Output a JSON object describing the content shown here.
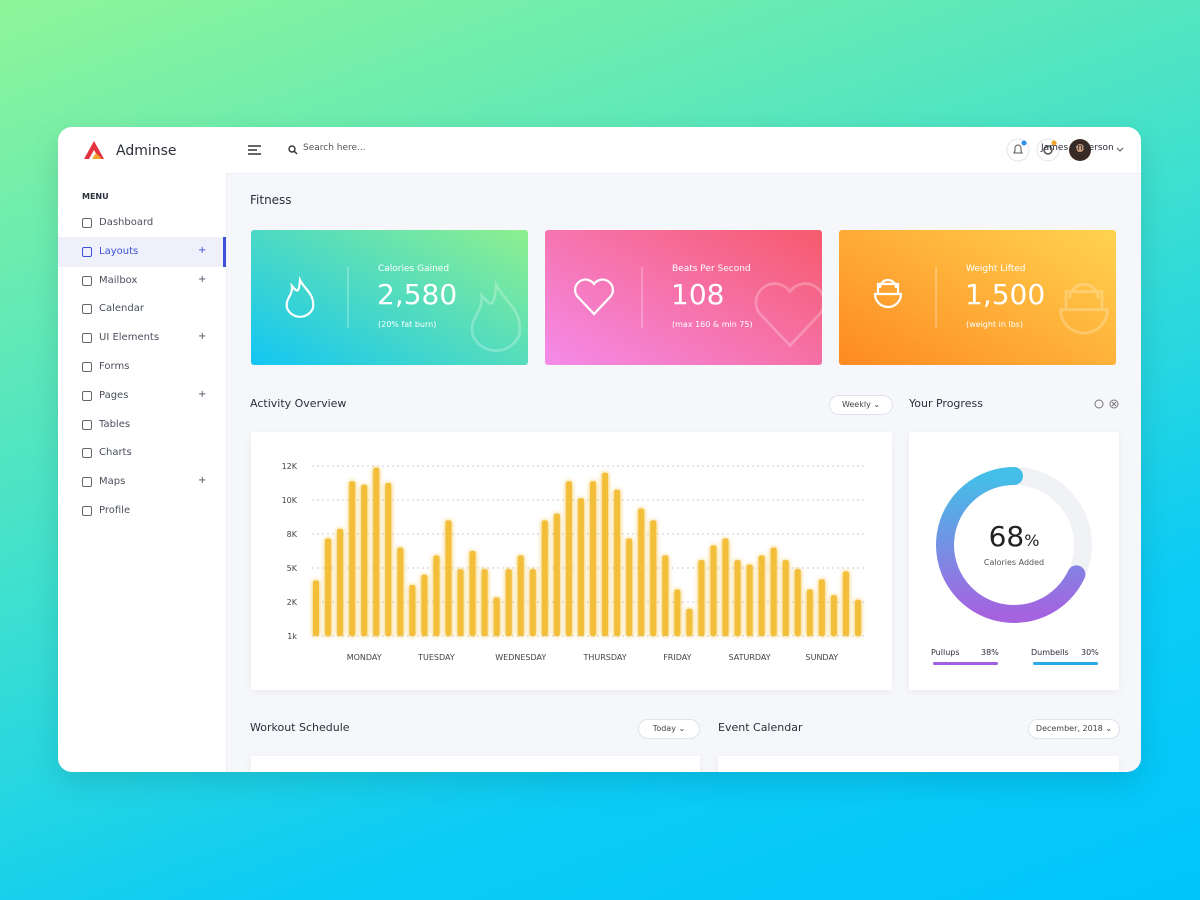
{
  "brand": "Adminse",
  "search_placeholder": "Search here...",
  "user": "James Anderson",
  "menu_title": "MENU",
  "menu": [
    {
      "label": "Dashboard"
    },
    {
      "label": "Layouts",
      "toggle": "+",
      "active": true
    },
    {
      "label": "Mailbox",
      "toggle": "+"
    },
    {
      "label": "Calendar"
    },
    {
      "label": "UI Elements",
      "toggle": "+"
    },
    {
      "label": "Forms"
    },
    {
      "label": "Pages",
      "toggle": "+"
    },
    {
      "label": "Tables"
    },
    {
      "label": "Charts"
    },
    {
      "label": "Maps",
      "toggle": "+"
    },
    {
      "label": "Profile"
    }
  ],
  "page_title": "Fitness",
  "stats": [
    {
      "label": "Calories Gained",
      "value": "2,580",
      "note": "(20% fat burn)"
    },
    {
      "label": "Beats Per Second",
      "value": "108",
      "note": "(max 160 & min 75)"
    },
    {
      "label": "Weight Lifted",
      "value": "1,500",
      "note": "(weight in lbs)"
    }
  ],
  "activity_filter": "Weekly",
  "chart_data": {
    "type": "bar",
    "title": "Activity Overview",
    "color": "#f3bf3a",
    "grid": true,
    "categories": [
      null,
      null,
      null,
      null,
      "MONDAY",
      null,
      null,
      null,
      null,
      null,
      "TUESDAY",
      null,
      null,
      null,
      null,
      null,
      null,
      "WEDNESDAY",
      null,
      null,
      null,
      null,
      null,
      null,
      "THURSDAY",
      null,
      null,
      null,
      null,
      null,
      "FRIDAY",
      null,
      null,
      null,
      null,
      null,
      "SATURDAY",
      null,
      null,
      null,
      null,
      null,
      "SUNDAY",
      null,
      null,
      null
    ],
    "values": [
      3900,
      7600,
      8300,
      11100,
      10900,
      11900,
      11000,
      6800,
      3500,
      4400,
      6100,
      8800,
      4900,
      6500,
      4900,
      2400,
      4900,
      6100,
      4900,
      8800,
      9200,
      11100,
      10100,
      11100,
      11600,
      10600,
      7600,
      9500,
      8800,
      6100,
      3100,
      1800,
      5700,
      7000,
      7600,
      5700,
      5300,
      6100,
      6800,
      5700,
      4900,
      3100,
      4000,
      2600,
      4700,
      2200
    ],
    "ylim": [
      1000,
      12000
    ],
    "yticks": [
      {
        "value": 1000,
        "label": "1k"
      },
      {
        "value": 2000,
        "label": "2K"
      },
      {
        "value": 5000,
        "label": "5K"
      },
      {
        "value": 8000,
        "label": "8K"
      },
      {
        "value": 10000,
        "label": "10K"
      },
      {
        "value": 12000,
        "label": "12K"
      }
    ]
  },
  "progress": {
    "title": "Your Progress",
    "value": 68,
    "unit": "%",
    "caption": "Calories Added",
    "items": [
      {
        "label": "Pullups",
        "value": "38%"
      },
      {
        "label": "Dumbells",
        "value": "30%"
      }
    ]
  },
  "workout": {
    "title": "Workout Schedule",
    "filter": "Today"
  },
  "events": {
    "title": "Event Calendar",
    "filter": "December, 2018"
  }
}
